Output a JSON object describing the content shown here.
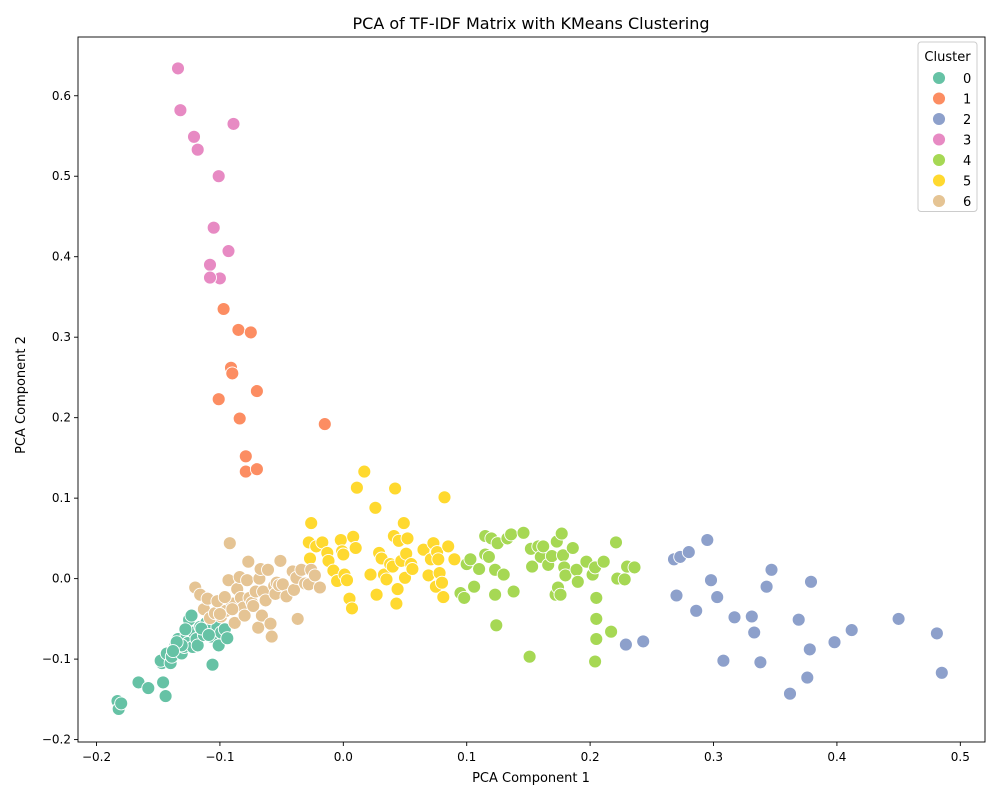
{
  "chart_data": {
    "type": "scatter",
    "title": "PCA of TF-IDF Matrix with KMeans Clustering",
    "xlabel": "PCA Component 1",
    "ylabel": "PCA Component 2",
    "xlim": [
      -0.215,
      0.52
    ],
    "ylim": [
      -0.203,
      0.673
    ],
    "xticks": [
      -0.2,
      -0.1,
      0.0,
      0.1,
      0.2,
      0.3,
      0.4,
      0.5
    ],
    "xtick_labels": [
      "−0.2",
      "−0.1",
      "0.0",
      "0.1",
      "0.2",
      "0.3",
      "0.4",
      "0.5"
    ],
    "yticks": [
      -0.2,
      -0.1,
      0.0,
      0.1,
      0.2,
      0.3,
      0.4,
      0.5,
      0.6
    ],
    "ytick_labels": [
      "−0.2",
      "−0.1",
      "0.0",
      "0.1",
      "0.2",
      "0.3",
      "0.4",
      "0.5",
      "0.6"
    ],
    "grid": false,
    "legend": {
      "title": "Cluster",
      "placement": "top-right"
    },
    "series": [
      {
        "name": "0",
        "color": "#66c2a5",
        "points": [
          [
            -0.183,
            -0.152
          ],
          [
            -0.182,
            -0.162
          ],
          [
            -0.18,
            -0.155
          ],
          [
            -0.166,
            -0.129
          ],
          [
            -0.158,
            -0.136
          ],
          [
            -0.146,
            -0.129
          ],
          [
            -0.144,
            -0.146
          ],
          [
            -0.147,
            -0.105
          ],
          [
            -0.148,
            -0.102
          ],
          [
            -0.143,
            -0.093
          ],
          [
            -0.14,
            -0.105
          ],
          [
            -0.139,
            -0.097
          ],
          [
            -0.136,
            -0.083
          ],
          [
            -0.134,
            -0.075
          ],
          [
            -0.133,
            -0.09
          ],
          [
            -0.131,
            -0.093
          ],
          [
            -0.129,
            -0.085
          ],
          [
            -0.127,
            -0.07
          ],
          [
            -0.126,
            -0.08
          ],
          [
            -0.125,
            -0.051
          ],
          [
            -0.123,
            -0.046
          ],
          [
            -0.122,
            -0.085
          ],
          [
            -0.121,
            -0.067
          ],
          [
            -0.119,
            -0.075
          ],
          [
            -0.118,
            -0.083
          ],
          [
            -0.116,
            -0.06
          ],
          [
            -0.113,
            -0.07
          ],
          [
            -0.111,
            -0.055
          ],
          [
            -0.109,
            -0.064
          ],
          [
            -0.107,
            -0.072
          ],
          [
            -0.106,
            -0.107
          ],
          [
            -0.104,
            -0.048
          ],
          [
            -0.102,
            -0.06
          ],
          [
            -0.101,
            -0.083
          ],
          [
            -0.099,
            -0.067
          ],
          [
            -0.096,
            -0.063
          ],
          [
            -0.094,
            -0.074
          ],
          [
            -0.131,
            -0.083
          ],
          [
            -0.128,
            -0.063
          ],
          [
            -0.135,
            -0.079
          ],
          [
            -0.138,
            -0.09
          ],
          [
            -0.115,
            -0.062
          ],
          [
            -0.109,
            -0.07
          ]
        ]
      },
      {
        "name": "1",
        "color": "#fc8d62",
        "points": [
          [
            -0.097,
            0.335
          ],
          [
            -0.085,
            0.309
          ],
          [
            -0.075,
            0.306
          ],
          [
            -0.091,
            0.262
          ],
          [
            -0.09,
            0.255
          ],
          [
            -0.101,
            0.223
          ],
          [
            -0.07,
            0.233
          ],
          [
            -0.084,
            0.199
          ],
          [
            -0.079,
            0.152
          ],
          [
            -0.079,
            0.133
          ],
          [
            -0.07,
            0.136
          ],
          [
            -0.015,
            0.192
          ]
        ]
      },
      {
        "name": "2",
        "color": "#8da0cb",
        "points": [
          [
            0.229,
            -0.082
          ],
          [
            0.243,
            -0.078
          ],
          [
            0.268,
            0.024
          ],
          [
            0.27,
            -0.021
          ],
          [
            0.273,
            0.027
          ],
          [
            0.28,
            0.033
          ],
          [
            0.286,
            -0.04
          ],
          [
            0.295,
            0.048
          ],
          [
            0.298,
            -0.002
          ],
          [
            0.303,
            -0.023
          ],
          [
            0.308,
            -0.102
          ],
          [
            0.317,
            -0.048
          ],
          [
            0.331,
            -0.047
          ],
          [
            0.333,
            -0.067
          ],
          [
            0.338,
            -0.104
          ],
          [
            0.343,
            -0.01
          ],
          [
            0.347,
            0.011
          ],
          [
            0.362,
            -0.143
          ],
          [
            0.369,
            -0.051
          ],
          [
            0.376,
            -0.123
          ],
          [
            0.378,
            -0.088
          ],
          [
            0.379,
            -0.004
          ],
          [
            0.398,
            -0.079
          ],
          [
            0.412,
            -0.064
          ],
          [
            0.45,
            -0.05
          ],
          [
            0.481,
            -0.068
          ],
          [
            0.485,
            -0.117
          ]
        ]
      },
      {
        "name": "3",
        "color": "#e78ac3",
        "points": [
          [
            -0.134,
            0.634
          ],
          [
            -0.132,
            0.582
          ],
          [
            -0.121,
            0.549
          ],
          [
            -0.118,
            0.533
          ],
          [
            -0.089,
            0.565
          ],
          [
            -0.101,
            0.5
          ],
          [
            -0.105,
            0.436
          ],
          [
            -0.093,
            0.407
          ],
          [
            -0.108,
            0.39
          ],
          [
            -0.1,
            0.373
          ],
          [
            -0.108,
            0.374
          ]
        ]
      },
      {
        "name": "4",
        "color": "#a6d854",
        "points": [
          [
            0.095,
            -0.018
          ],
          [
            0.098,
            -0.024
          ],
          [
            0.1,
            0.018
          ],
          [
            0.103,
            0.024
          ],
          [
            0.106,
            -0.01
          ],
          [
            0.11,
            0.012
          ],
          [
            0.115,
            0.053
          ],
          [
            0.115,
            0.03
          ],
          [
            0.118,
            0.027
          ],
          [
            0.12,
            0.05
          ],
          [
            0.123,
            -0.02
          ],
          [
            0.123,
            0.011
          ],
          [
            0.124,
            -0.058
          ],
          [
            0.125,
            0.044
          ],
          [
            0.13,
            0.005
          ],
          [
            0.133,
            0.05
          ],
          [
            0.136,
            0.055
          ],
          [
            0.138,
            -0.016
          ],
          [
            0.146,
            0.057
          ],
          [
            0.151,
            -0.097
          ],
          [
            0.152,
            0.037
          ],
          [
            0.153,
            0.015
          ],
          [
            0.158,
            0.04
          ],
          [
            0.16,
            0.027
          ],
          [
            0.162,
            0.04
          ],
          [
            0.166,
            0.017
          ],
          [
            0.169,
            0.028
          ],
          [
            0.172,
            -0.02
          ],
          [
            0.173,
            0.046
          ],
          [
            0.174,
            -0.011
          ],
          [
            0.176,
            -0.02
          ],
          [
            0.177,
            0.056
          ],
          [
            0.178,
            0.029
          ],
          [
            0.179,
            0.014
          ],
          [
            0.18,
            0.004
          ],
          [
            0.186,
            0.038
          ],
          [
            0.189,
            0.011
          ],
          [
            0.19,
            -0.004
          ],
          [
            0.197,
            0.021
          ],
          [
            0.202,
            0.005
          ],
          [
            0.204,
            0.014
          ],
          [
            0.205,
            -0.024
          ],
          [
            0.205,
            -0.05
          ],
          [
            0.205,
            -0.075
          ],
          [
            0.204,
            -0.103
          ],
          [
            0.211,
            0.021
          ],
          [
            0.217,
            -0.066
          ],
          [
            0.221,
            0.045
          ],
          [
            0.222,
            0.0
          ],
          [
            0.228,
            -0.001
          ],
          [
            0.23,
            0.015
          ],
          [
            0.236,
            0.014
          ]
        ]
      },
      {
        "name": "5",
        "color": "#ffd92f",
        "points": [
          [
            -0.026,
            0.069
          ],
          [
            -0.028,
            0.045
          ],
          [
            -0.022,
            0.04
          ],
          [
            -0.017,
            0.045
          ],
          [
            -0.013,
            0.032
          ],
          [
            -0.012,
            0.022
          ],
          [
            -0.008,
            0.01
          ],
          [
            -0.005,
            -0.003
          ],
          [
            -0.002,
            0.048
          ],
          [
            -0.001,
            0.034
          ],
          [
            0.001,
            0.005
          ],
          [
            0.003,
            -0.002
          ],
          [
            0.005,
            -0.025
          ],
          [
            0.007,
            -0.037
          ],
          [
            0.008,
            0.052
          ],
          [
            0.01,
            0.038
          ],
          [
            0.011,
            0.113
          ],
          [
            0.017,
            0.133
          ],
          [
            0.022,
            0.005
          ],
          [
            0.026,
            0.088
          ],
          [
            0.027,
            -0.02
          ],
          [
            0.029,
            0.032
          ],
          [
            0.031,
            0.025
          ],
          [
            0.033,
            0.005
          ],
          [
            0.035,
            -0.001
          ],
          [
            0.038,
            0.018
          ],
          [
            0.04,
            0.015
          ],
          [
            0.041,
            0.053
          ],
          [
            0.042,
            0.112
          ],
          [
            0.043,
            -0.031
          ],
          [
            0.044,
            -0.013
          ],
          [
            0.045,
            0.047
          ],
          [
            0.047,
            0.022
          ],
          [
            0.049,
            0.069
          ],
          [
            0.05,
            0.001
          ],
          [
            0.051,
            0.031
          ],
          [
            0.052,
            0.05
          ],
          [
            0.055,
            0.018
          ],
          [
            0.056,
            0.012
          ],
          [
            0.065,
            0.036
          ],
          [
            0.069,
            0.004
          ],
          [
            0.071,
            0.024
          ],
          [
            0.073,
            0.044
          ],
          [
            0.075,
            -0.01
          ],
          [
            0.076,
            0.033
          ],
          [
            0.077,
            0.024
          ],
          [
            0.078,
            0.007
          ],
          [
            0.08,
            -0.005
          ],
          [
            0.081,
            -0.023
          ],
          [
            0.082,
            0.101
          ],
          [
            0.085,
            0.04
          ],
          [
            0.09,
            0.024
          ],
          [
            -0.027,
            0.025
          ],
          [
            0.0,
            0.03
          ]
        ]
      },
      {
        "name": "6",
        "color": "#e5c494",
        "points": [
          [
            -0.12,
            -0.011
          ],
          [
            -0.116,
            -0.02
          ],
          [
            -0.113,
            -0.038
          ],
          [
            -0.11,
            -0.025
          ],
          [
            -0.108,
            -0.049
          ],
          [
            -0.104,
            -0.043
          ],
          [
            -0.102,
            -0.028
          ],
          [
            -0.099,
            -0.047
          ],
          [
            -0.095,
            -0.04
          ],
          [
            -0.093,
            -0.002
          ],
          [
            -0.092,
            0.044
          ],
          [
            -0.09,
            -0.031
          ],
          [
            -0.088,
            -0.055
          ],
          [
            -0.086,
            -0.013
          ],
          [
            -0.084,
            0.002
          ],
          [
            -0.083,
            -0.024
          ],
          [
            -0.081,
            -0.036
          ],
          [
            -0.08,
            -0.046
          ],
          [
            -0.078,
            -0.002
          ],
          [
            -0.077,
            0.021
          ],
          [
            -0.076,
            -0.024
          ],
          [
            -0.074,
            -0.03
          ],
          [
            -0.073,
            -0.034
          ],
          [
            -0.071,
            -0.016
          ],
          [
            -0.069,
            -0.061
          ],
          [
            -0.068,
            0.0
          ],
          [
            -0.067,
            0.012
          ],
          [
            -0.066,
            -0.046
          ],
          [
            -0.065,
            -0.016
          ],
          [
            -0.063,
            -0.027
          ],
          [
            -0.061,
            0.011
          ],
          [
            -0.059,
            -0.056
          ],
          [
            -0.058,
            -0.072
          ],
          [
            -0.056,
            -0.009
          ],
          [
            -0.055,
            -0.019
          ],
          [
            -0.054,
            -0.005
          ],
          [
            -0.052,
            -0.008
          ],
          [
            -0.051,
            0.022
          ],
          [
            -0.049,
            -0.007
          ],
          [
            -0.046,
            -0.022
          ],
          [
            -0.041,
            0.009
          ],
          [
            -0.04,
            -0.014
          ],
          [
            -0.038,
            0.001
          ],
          [
            -0.037,
            -0.05
          ],
          [
            -0.034,
            0.011
          ],
          [
            -0.031,
            -0.006
          ],
          [
            -0.028,
            -0.007
          ],
          [
            -0.026,
            0.011
          ],
          [
            -0.023,
            0.004
          ],
          [
            -0.019,
            -0.011
          ],
          [
            -0.096,
            -0.023
          ],
          [
            -0.09,
            -0.038
          ],
          [
            -0.1,
            -0.044
          ]
        ]
      }
    ]
  }
}
